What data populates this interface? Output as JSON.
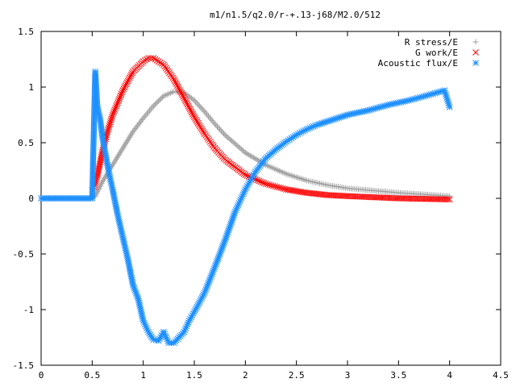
{
  "chart_data": {
    "type": "scatter",
    "title": "m1/n1.5/q2.0/r-+.13-j68/M2.0/512",
    "xlabel": "",
    "ylabel": "",
    "xlim": [
      0,
      4.5
    ],
    "ylim": [
      -1.5,
      1.5
    ],
    "xticks": [
      "0",
      "0.5",
      "1",
      "1.5",
      "2",
      "2.5",
      "3",
      "3.5",
      "4",
      "4.5"
    ],
    "yticks": [
      "1.5",
      "1",
      "0.5",
      "0",
      "-0.5",
      "-1",
      "-1.5"
    ],
    "grid": false,
    "legend_position": "top-right",
    "series": [
      {
        "name": "R stress/E",
        "marker": "plus",
        "color": "#a0a0a0",
        "x": [
          0.0,
          0.5,
          0.53,
          0.6,
          0.7,
          0.8,
          0.9,
          1.0,
          1.1,
          1.2,
          1.3,
          1.4,
          1.5,
          1.6,
          1.7,
          1.8,
          2.0,
          2.2,
          2.4,
          2.6,
          2.8,
          3.0,
          3.5,
          4.0
        ],
        "y": [
          0.0,
          0.0,
          0.02,
          0.15,
          0.3,
          0.45,
          0.6,
          0.72,
          0.83,
          0.92,
          0.96,
          0.95,
          0.88,
          0.78,
          0.67,
          0.57,
          0.41,
          0.3,
          0.22,
          0.16,
          0.12,
          0.09,
          0.05,
          0.02
        ]
      },
      {
        "name": "G work/E",
        "marker": "cross",
        "color": "#ff0000",
        "x": [
          0.52,
          0.55,
          0.6,
          0.65,
          0.7,
          0.8,
          0.9,
          1.0,
          1.05,
          1.1,
          1.2,
          1.3,
          1.4,
          1.5,
          1.6,
          1.7,
          1.8,
          2.0,
          2.2,
          2.4,
          2.6,
          2.8,
          3.0,
          3.5,
          4.0
        ],
        "y": [
          0.1,
          0.2,
          0.42,
          0.6,
          0.75,
          0.97,
          1.14,
          1.23,
          1.26,
          1.26,
          1.2,
          1.07,
          0.9,
          0.73,
          0.58,
          0.45,
          0.35,
          0.21,
          0.13,
          0.08,
          0.05,
          0.03,
          0.02,
          0.0,
          -0.01
        ]
      },
      {
        "name": "Acoustic flux/E",
        "marker": "star",
        "color": "#1e90ff",
        "x": [
          0.0,
          0.5,
          0.53,
          0.55,
          0.58,
          0.6,
          0.63,
          0.66,
          0.7,
          0.75,
          0.8,
          0.85,
          0.9,
          0.95,
          1.0,
          1.05,
          1.1,
          1.15,
          1.2,
          1.25,
          1.3,
          1.35,
          1.4,
          1.45,
          1.5,
          1.6,
          1.7,
          1.8,
          1.9,
          2.0,
          2.1,
          2.2,
          2.3,
          2.4,
          2.5,
          2.6,
          2.7,
          2.8,
          2.9,
          3.0,
          3.2,
          3.4,
          3.6,
          3.8,
          3.95,
          4.0
        ],
        "y": [
          0.0,
          0.0,
          1.14,
          0.83,
          0.7,
          0.55,
          0.4,
          0.25,
          0.08,
          -0.15,
          -0.35,
          -0.55,
          -0.78,
          -0.9,
          -1.1,
          -1.2,
          -1.27,
          -1.28,
          -1.2,
          -1.3,
          -1.3,
          -1.25,
          -1.2,
          -1.1,
          -1.02,
          -0.85,
          -0.62,
          -0.38,
          -0.12,
          0.08,
          0.24,
          0.36,
          0.44,
          0.51,
          0.57,
          0.62,
          0.66,
          0.69,
          0.72,
          0.75,
          0.79,
          0.84,
          0.88,
          0.93,
          0.97,
          0.82
        ]
      }
    ]
  }
}
